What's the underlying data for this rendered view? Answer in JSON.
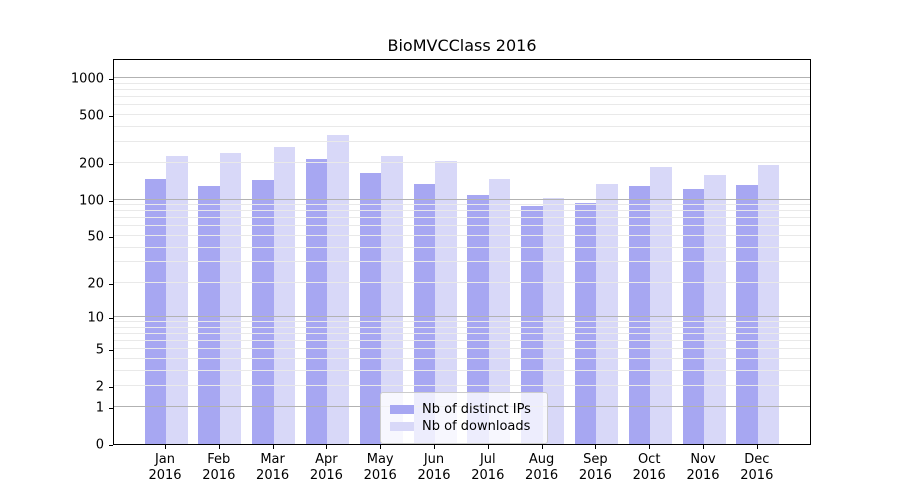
{
  "title": "BioMVCClass 2016",
  "colors": {
    "ips_bar": "#a7a7f2",
    "downloads_bar": "#d8d8f8",
    "grid_major": "#b2b2b2",
    "grid_minor": "#e9e9e9",
    "axis": "#000000",
    "legend_border": "#cccccc"
  },
  "chart_data": {
    "type": "bar",
    "title": "BioMVCClass 2016",
    "categories": [
      "Jan 2016",
      "Feb 2016",
      "Mar 2016",
      "Apr 2016",
      "May 2016",
      "Jun 2016",
      "Jul 2016",
      "Aug 2016",
      "Sep 2016",
      "Oct 2016",
      "Nov 2016",
      "Dec 2016"
    ],
    "series": [
      {
        "name": "Nb of distinct IPs",
        "color": "#a7a7f2",
        "values": [
          148,
          131,
          147,
          219,
          168,
          136,
          109,
          89,
          94,
          131,
          124,
          132
        ]
      },
      {
        "name": "Nb of downloads",
        "color": "#d8d8f8",
        "values": [
          232,
          245,
          274,
          344,
          232,
          211,
          150,
          104,
          134,
          185,
          161,
          195
        ]
      }
    ],
    "xlabel": "",
    "ylabel": "",
    "yscale": "log1p",
    "ylim": [
      0,
      1470
    ],
    "y_ticks": [
      0,
      1,
      2,
      5,
      10,
      20,
      50,
      100,
      200,
      500,
      1000
    ],
    "grid": true,
    "grid_major_values": [
      1,
      10,
      100,
      1000
    ],
    "grid_minor_values": [
      2,
      3,
      4,
      5,
      6,
      7,
      8,
      9,
      20,
      30,
      40,
      50,
      60,
      70,
      80,
      90,
      200,
      300,
      400,
      500,
      600,
      700,
      800,
      900
    ],
    "legend_position": "lower center"
  }
}
